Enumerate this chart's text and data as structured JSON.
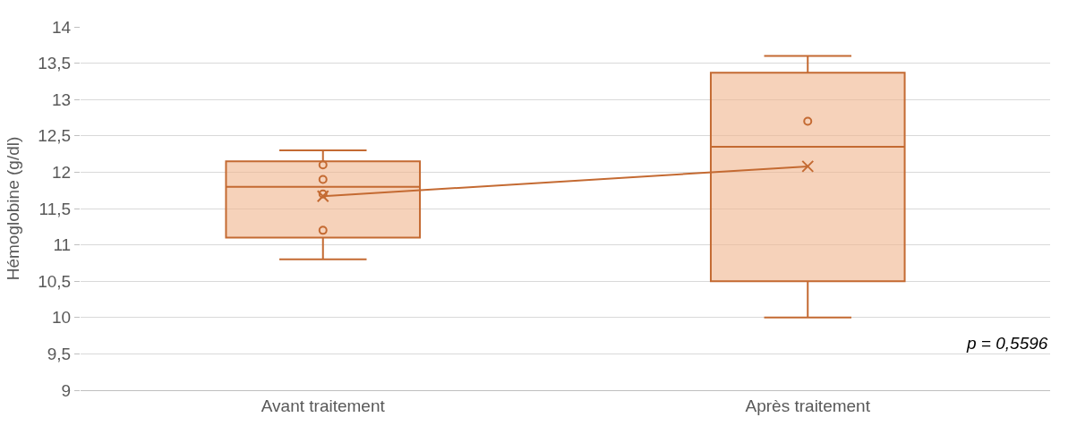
{
  "chart_data": {
    "type": "box",
    "ylabel": "Hémoglobine (g/dl)",
    "categories": [
      "Avant traitement",
      "Après traitement"
    ],
    "boxes": [
      {
        "low": 10.8,
        "q1": 11.1,
        "median": 11.8,
        "q3": 12.15,
        "high": 12.3
      },
      {
        "low": 10.0,
        "q1": 10.5,
        "median": 12.35,
        "q3": 13.37,
        "high": 13.6
      }
    ],
    "color": "#c46a32",
    "series": [
      {
        "type": "scatter",
        "color": "#c46a32",
        "marker": "circle",
        "x": [
          "Avant traitement",
          "Avant traitement",
          "Avant traitement",
          "Avant traitement",
          "Après traitement"
        ],
        "values": [
          12.1,
          11.9,
          11.7,
          11.2,
          12.7
        ]
      },
      {
        "type": "line",
        "color": "#c46a32",
        "marker": "cross",
        "values": [
          11.67,
          12.08
        ]
      }
    ],
    "ylim": [
      9,
      14
    ],
    "yticks": [
      9,
      {
        "value": 9.5,
        "label": "9,5"
      },
      10,
      {
        "value": 10.5,
        "label": "10,5"
      },
      11,
      {
        "value": 11.5,
        "label": "11,5"
      },
      12,
      {
        "value": 12.5,
        "label": "12,5"
      },
      13,
      {
        "value": 13.5,
        "label": "13,5"
      },
      14
    ],
    "grid": "y",
    "annotations": [
      {
        "text": "p = 0,5596"
      }
    ]
  }
}
